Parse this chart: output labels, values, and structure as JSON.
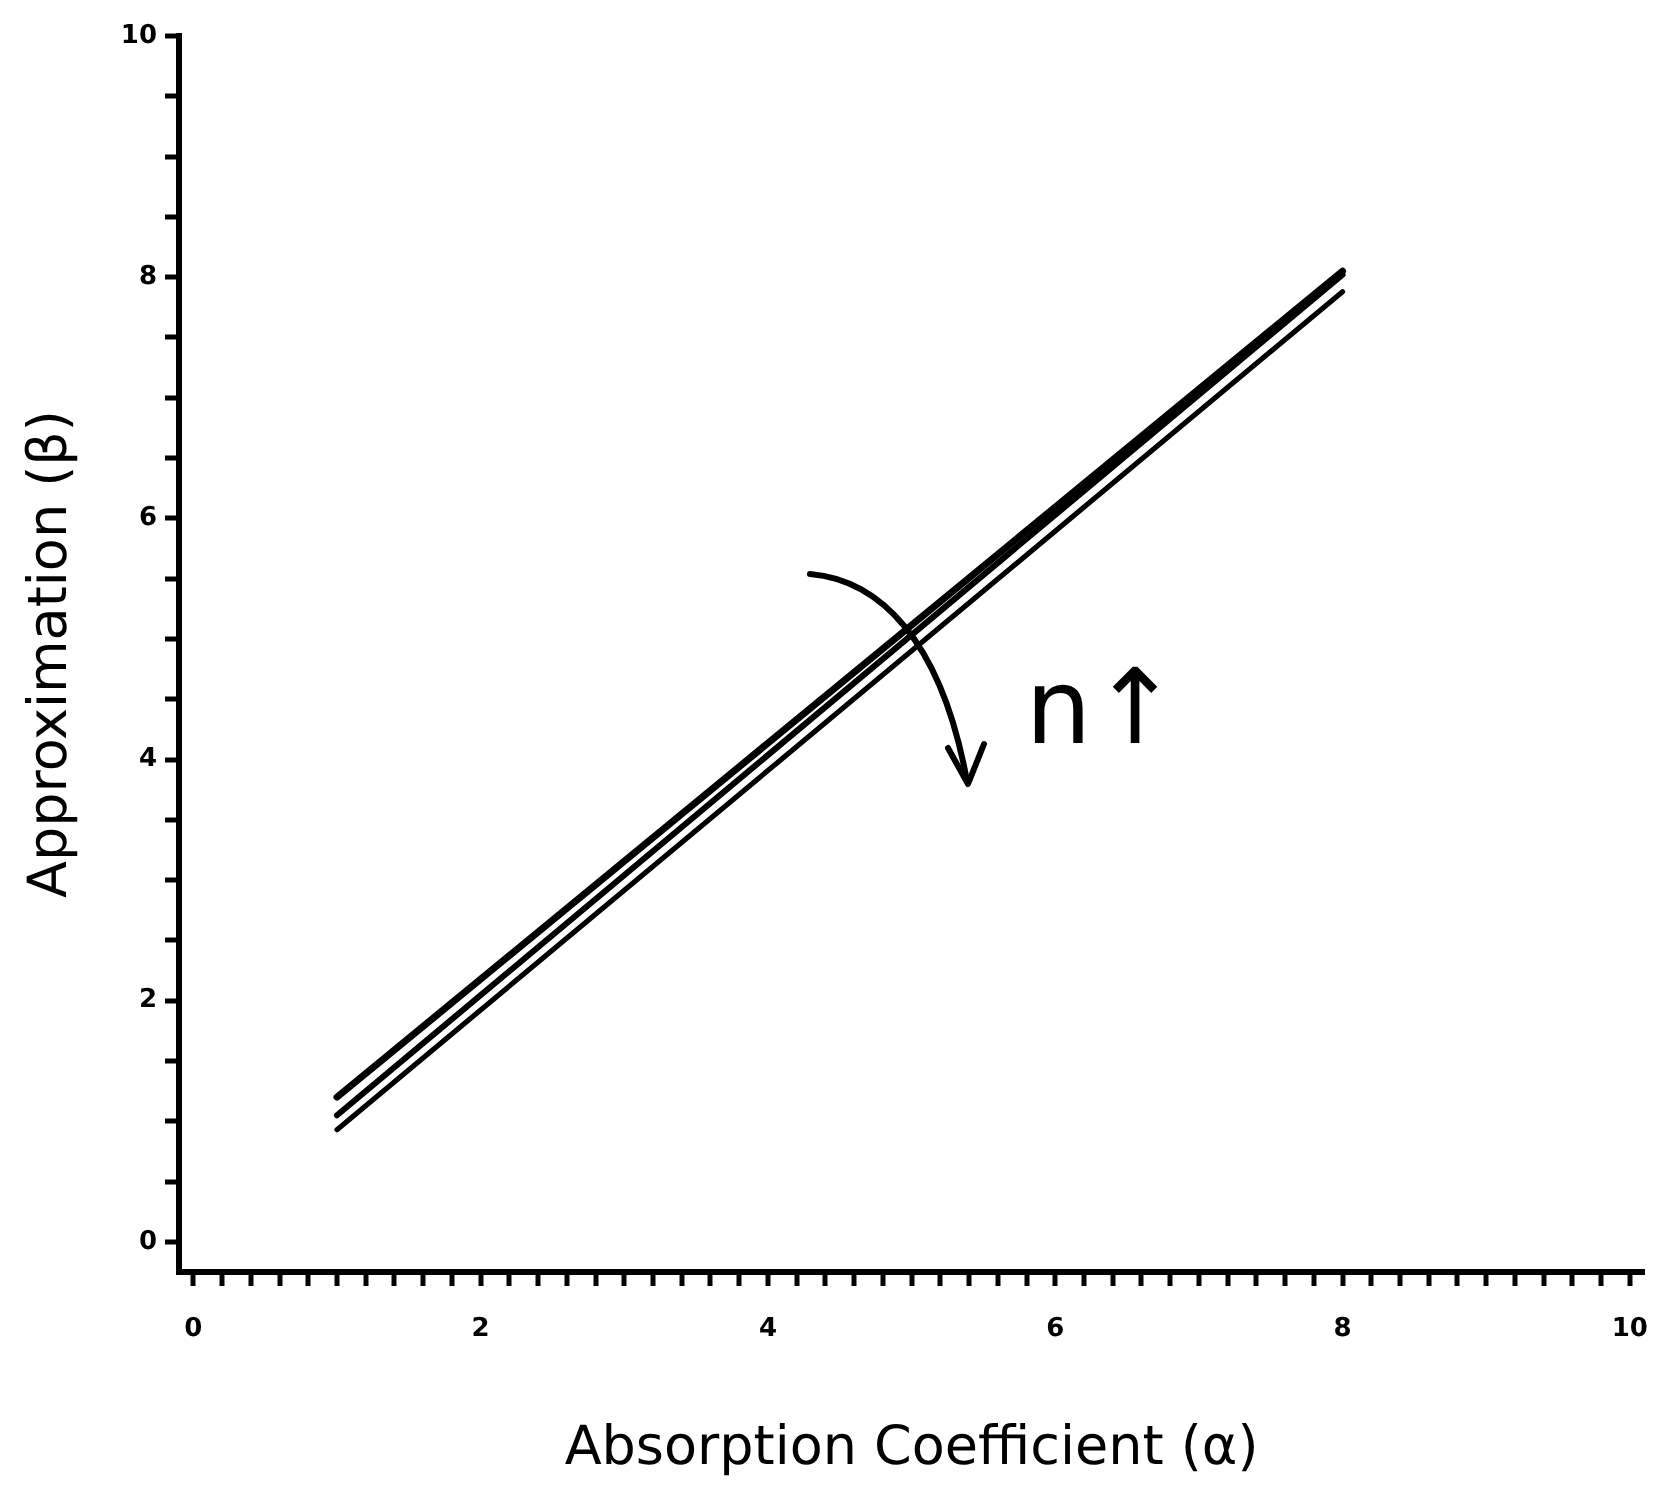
{
  "chart_data": {
    "type": "line",
    "xlabel": "Absorption Coefficient (α)",
    "ylabel": "Approximation (β)",
    "x": [
      1,
      8
    ],
    "series": [
      {
        "color": "#000000",
        "values": [
          1.2,
          8.05
        ]
      },
      {
        "color": "#000000",
        "values": [
          1.05,
          8.02
        ]
      },
      {
        "color": "#000000",
        "values": [
          0.93,
          7.88
        ]
      }
    ],
    "xlim": [
      -0.1,
      10.1
    ],
    "ylim": [
      -0.25,
      10
    ],
    "xticks": [
      0,
      {
        "value": 0.2,
        "label": null
      },
      {
        "value": 0.4,
        "label": null
      },
      {
        "value": 0.6,
        "label": null
      },
      {
        "value": 0.8,
        "label": null
      },
      {
        "value": 1,
        "label": null
      },
      {
        "value": 1.2,
        "label": null
      },
      {
        "value": 1.4,
        "label": null
      },
      {
        "value": 1.6,
        "label": null
      },
      {
        "value": 1.8,
        "label": null
      },
      2,
      {
        "value": 2.2,
        "label": null
      },
      {
        "value": 2.4,
        "label": null
      },
      {
        "value": 2.6,
        "label": null
      },
      {
        "value": 2.8,
        "label": null
      },
      {
        "value": 3,
        "label": null
      },
      {
        "value": 3.2,
        "label": null
      },
      {
        "value": 3.4,
        "label": null
      },
      {
        "value": 3.6,
        "label": null
      },
      {
        "value": 3.8,
        "label": null
      },
      4,
      {
        "value": 4.2,
        "label": null
      },
      {
        "value": 4.4,
        "label": null
      },
      {
        "value": 4.6,
        "label": null
      },
      {
        "value": 4.8,
        "label": null
      },
      {
        "value": 5,
        "label": null
      },
      {
        "value": 5.2,
        "label": null
      },
      {
        "value": 5.4,
        "label": null
      },
      {
        "value": 5.6,
        "label": null
      },
      {
        "value": 5.8,
        "label": null
      },
      6,
      {
        "value": 6.2,
        "label": null
      },
      {
        "value": 6.4,
        "label": null
      },
      {
        "value": 6.6,
        "label": null
      },
      {
        "value": 6.8,
        "label": null
      },
      {
        "value": 7,
        "label": null
      },
      {
        "value": 7.2,
        "label": null
      },
      {
        "value": 7.4,
        "label": null
      },
      {
        "value": 7.6,
        "label": null
      },
      {
        "value": 7.8,
        "label": null
      },
      8,
      {
        "value": 8.2,
        "label": null
      },
      {
        "value": 8.4,
        "label": null
      },
      {
        "value": 8.6,
        "label": null
      },
      {
        "value": 8.8,
        "label": null
      },
      {
        "value": 9,
        "label": null
      },
      {
        "value": 9.2,
        "label": null
      },
      {
        "value": 9.4,
        "label": null
      },
      {
        "value": 9.6,
        "label": null
      },
      {
        "value": 9.8,
        "label": null
      },
      10
    ],
    "yticks": [
      0,
      {
        "value": 0.5,
        "label": null
      },
      {
        "value": 1,
        "label": null
      },
      {
        "value": 1.5,
        "label": null
      },
      2,
      {
        "value": 2.5,
        "label": null
      },
      {
        "value": 3,
        "label": null
      },
      {
        "value": 3.5,
        "label": null
      },
      4,
      {
        "value": 4.5,
        "label": null
      },
      {
        "value": 5,
        "label": null
      },
      {
        "value": 5.5,
        "label": null
      },
      6,
      {
        "value": 6.5,
        "label": null
      },
      {
        "value": 7,
        "label": null
      },
      {
        "value": 7.5,
        "label": null
      },
      8,
      {
        "value": 8.5,
        "label": null
      },
      {
        "value": 9,
        "label": null
      },
      {
        "value": 9.5,
        "label": null
      },
      10
    ],
    "annotations": [
      "n↑"
    ],
    "grid": false,
    "legend": false,
    "marker": "none",
    "line_style": "solid"
  }
}
